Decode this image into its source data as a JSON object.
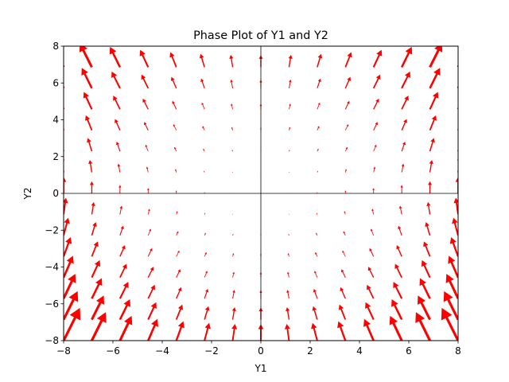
{
  "chart_data": {
    "type": "quiver",
    "title": "Phase Plot of Y1 and Y2",
    "xlabel": "Y1",
    "ylabel": "Y2",
    "xlim": [
      -8,
      8
    ],
    "ylim": [
      -8,
      8
    ],
    "xticks": [
      -8,
      -6,
      -4,
      -2,
      0,
      2,
      4,
      6,
      8
    ],
    "yticks": [
      -8,
      -6,
      -4,
      -2,
      0,
      2,
      4,
      6,
      8
    ],
    "xtick_labels": [
      "−8",
      "−6",
      "−4",
      "−2",
      "0",
      "2",
      "4",
      "6",
      "8"
    ],
    "ytick_labels": [
      "−8",
      "−6",
      "−4",
      "−2",
      "0",
      "2",
      "4",
      "6",
      "8"
    ],
    "grid": false,
    "zero_lines": true,
    "arrow_color": "#ff0000",
    "field": {
      "description": "dY1/dt = Y1*Y2, dY2/dt = Y1^2 + Y2^2 (normalized for display)",
      "grid_min": -8,
      "grid_max": 8,
      "grid_count": 15
    }
  }
}
